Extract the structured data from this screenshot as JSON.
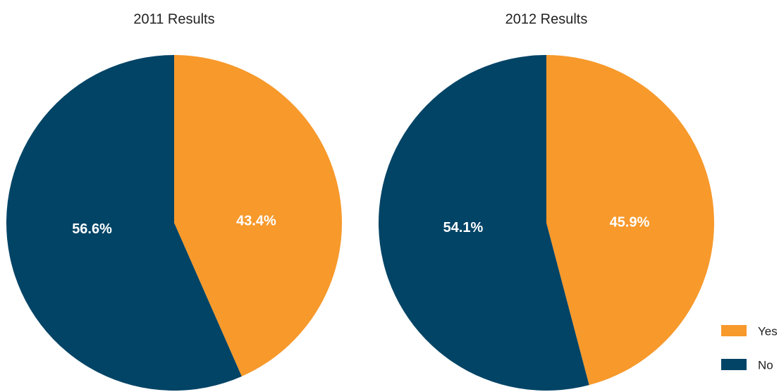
{
  "chart_data": [
    {
      "type": "pie",
      "title": "2011 Results",
      "categories": [
        "Yes",
        "No"
      ],
      "values": [
        43.4,
        56.6
      ],
      "value_labels": [
        "43.4%",
        "56.6%"
      ],
      "colors": [
        "#f7992b",
        "#024466"
      ],
      "legend": "bottom-right"
    },
    {
      "type": "pie",
      "title": "2012 Results",
      "categories": [
        "Yes",
        "No"
      ],
      "values": [
        45.9,
        54.1
      ],
      "value_labels": [
        "45.9%",
        "54.1%"
      ],
      "colors": [
        "#f7992b",
        "#024466"
      ],
      "legend": "bottom-right"
    }
  ]
}
